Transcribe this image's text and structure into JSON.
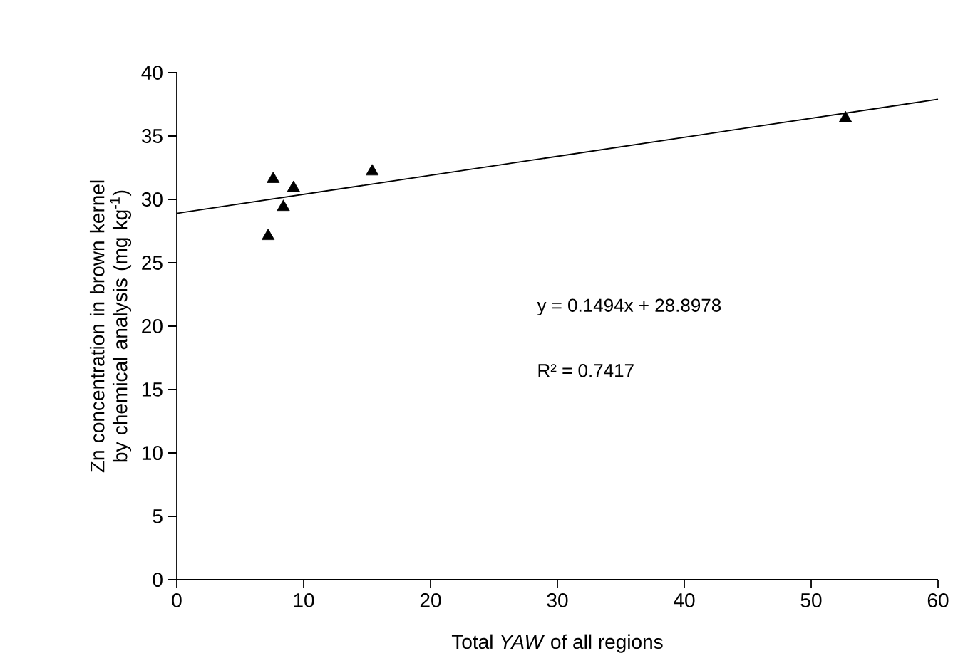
{
  "chart_data": {
    "type": "scatter",
    "xlabel": "Total *YAW* of all regions",
    "ylabel": "Zn concentration in brown kernel by chemical analysis (mg kg$^{-1}$)",
    "xlim": [
      0,
      60
    ],
    "ylim": [
      0,
      40
    ],
    "xticks": [
      0,
      10,
      20,
      30,
      40,
      50,
      60
    ],
    "yticks": [
      0,
      5,
      10,
      15,
      20,
      25,
      30,
      35,
      40
    ],
    "marker": "triangle",
    "series": [
      {
        "color": "#000000",
        "x": [
          7.6,
          9.2,
          8.4,
          7.2,
          15.4,
          52.7
        ],
        "values": [
          31.6,
          30.9,
          29.4,
          27.1,
          32.2,
          36.4
        ]
      },
      {
        "type": "line",
        "color": "#000000",
        "marker": "none",
        "line_style": "solid",
        "x": [
          0,
          60
        ],
        "values": [
          28.9,
          37.9
        ]
      }
    ],
    "annotations": [
      "y = 0.1494x + 28.8978",
      "R² = 0.7417"
    ]
  }
}
